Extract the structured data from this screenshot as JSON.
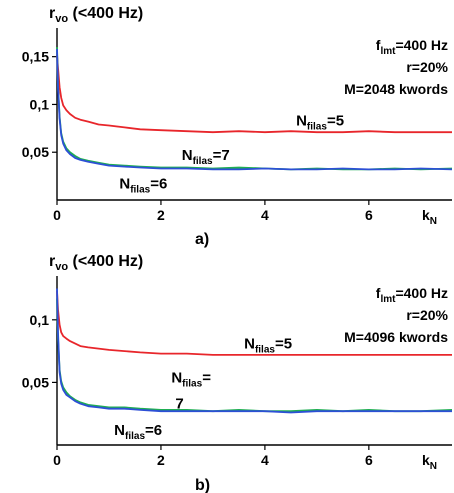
{
  "chart_data": [
    {
      "type": "line",
      "panel_label": "a)",
      "ylabel": {
        "base": "r",
        "sub": "vo",
        "rest": " (<400 Hz)"
      },
      "xlabel": {
        "base": "k",
        "sub": "N"
      },
      "xlim": [
        0,
        7.6
      ],
      "ylim": [
        0,
        0.18
      ],
      "xticks": [
        {
          "v": 0,
          "label": "0"
        },
        {
          "v": 2,
          "label": "2"
        },
        {
          "v": 4,
          "label": "4"
        },
        {
          "v": 6,
          "label": "6"
        }
      ],
      "yticks": [
        {
          "v": 0.05,
          "label": "0,05"
        },
        {
          "v": 0.1,
          "label": "0,1"
        },
        {
          "v": 0.15,
          "label": "0,15"
        }
      ],
      "params": [
        {
          "base": "f",
          "sub": "lmt",
          "rest": "=400 Hz"
        },
        {
          "base": "r=20%",
          "sub": "",
          "rest": ""
        },
        {
          "base": "M=2048 kwords",
          "sub": "",
          "rest": ""
        }
      ],
      "series": [
        {
          "label": {
            "base": "N",
            "sub": "filas",
            "rest": "=5"
          },
          "label_pos": [
            4.6,
            0.078
          ],
          "color": "#e8262b",
          "x": [
            0,
            0.02,
            0.05,
            0.08,
            0.12,
            0.18,
            0.25,
            0.35,
            0.45,
            0.6,
            0.8,
            1.0,
            1.3,
            1.6,
            2.0,
            2.5,
            3.0,
            3.5,
            4.0,
            4.5,
            5.0,
            5.5,
            6.0,
            6.5,
            7.0,
            7.6
          ],
          "y": [
            0.152,
            0.138,
            0.118,
            0.107,
            0.099,
            0.094,
            0.09,
            0.086,
            0.084,
            0.082,
            0.079,
            0.078,
            0.076,
            0.074,
            0.073,
            0.072,
            0.071,
            0.072,
            0.071,
            0.072,
            0.071,
            0.071,
            0.072,
            0.071,
            0.071,
            0.071
          ]
        },
        {
          "label": {
            "base": "N",
            "sub": "filas",
            "rest": "=7"
          },
          "label_pos": [
            2.4,
            0.042
          ],
          "color": "#1fae52",
          "x": [
            0,
            0.02,
            0.05,
            0.08,
            0.12,
            0.18,
            0.25,
            0.35,
            0.45,
            0.6,
            0.8,
            1.0,
            1.3,
            1.6,
            2.0,
            2.5,
            3.0,
            3.5,
            4.0,
            4.5,
            5.0,
            5.5,
            6.0,
            6.5,
            7.0,
            7.6
          ],
          "y": [
            0.16,
            0.12,
            0.087,
            0.07,
            0.061,
            0.054,
            0.05,
            0.046,
            0.043,
            0.041,
            0.039,
            0.037,
            0.036,
            0.035,
            0.034,
            0.034,
            0.033,
            0.034,
            0.033,
            0.032,
            0.033,
            0.032,
            0.032,
            0.033,
            0.032,
            0.033
          ]
        },
        {
          "label": {
            "base": "N",
            "sub": "filas",
            "rest": "=6"
          },
          "label_pos": [
            1.2,
            0.012
          ],
          "color": "#2d4fd6",
          "x": [
            0,
            0.02,
            0.05,
            0.08,
            0.12,
            0.18,
            0.25,
            0.35,
            0.45,
            0.6,
            0.8,
            1.0,
            1.3,
            1.6,
            2.0,
            2.5,
            3.0,
            3.5,
            4.0,
            4.5,
            5.0,
            5.5,
            6.0,
            6.5,
            7.0,
            7.6
          ],
          "y": [
            0.158,
            0.118,
            0.085,
            0.068,
            0.059,
            0.052,
            0.048,
            0.044,
            0.042,
            0.04,
            0.038,
            0.036,
            0.035,
            0.034,
            0.033,
            0.033,
            0.032,
            0.032,
            0.033,
            0.032,
            0.032,
            0.033,
            0.032,
            0.032,
            0.033,
            0.032
          ]
        }
      ]
    },
    {
      "type": "line",
      "panel_label": "b)",
      "ylabel": {
        "base": "r",
        "sub": "vo",
        "rest": " (<400 Hz)"
      },
      "xlabel": {
        "base": "k",
        "sub": "N"
      },
      "xlim": [
        0,
        7.6
      ],
      "ylim": [
        0,
        0.135
      ],
      "xticks": [
        {
          "v": 0,
          "label": "0"
        },
        {
          "v": 2,
          "label": "2"
        },
        {
          "v": 4,
          "label": "4"
        },
        {
          "v": 6,
          "label": "6"
        }
      ],
      "yticks": [
        {
          "v": 0.05,
          "label": "0,05"
        },
        {
          "v": 0.1,
          "label": "0,1"
        }
      ],
      "params": [
        {
          "base": "f",
          "sub": "lmt",
          "rest": "=400 Hz"
        },
        {
          "base": "r=20%",
          "sub": "",
          "rest": ""
        },
        {
          "base": "M=4096 kwords",
          "sub": "",
          "rest": ""
        }
      ],
      "series": [
        {
          "label": {
            "base": "N",
            "sub": "filas",
            "rest": "=5"
          },
          "label_pos": [
            3.6,
            0.077
          ],
          "color": "#e8262b",
          "x": [
            0,
            0.02,
            0.05,
            0.08,
            0.12,
            0.18,
            0.25,
            0.35,
            0.45,
            0.6,
            0.8,
            1.0,
            1.3,
            1.6,
            2.0,
            2.5,
            3.0,
            3.5,
            4.0,
            4.5,
            5.0,
            5.5,
            6.0,
            6.5,
            7.0,
            7.6
          ],
          "y": [
            0.123,
            0.108,
            0.096,
            0.09,
            0.087,
            0.085,
            0.083,
            0.081,
            0.079,
            0.078,
            0.077,
            0.076,
            0.075,
            0.074,
            0.073,
            0.073,
            0.072,
            0.072,
            0.072,
            0.072,
            0.072,
            0.072,
            0.072,
            0.072,
            0.072,
            0.072
          ]
        },
        {
          "label": {
            "base": "N",
            "sub": "filas",
            "rest": "="
          },
          "label_extra": "7",
          "label_pos": [
            2.2,
            0.05
          ],
          "color": "#1fae52",
          "x": [
            0,
            0.02,
            0.05,
            0.08,
            0.12,
            0.18,
            0.25,
            0.35,
            0.45,
            0.6,
            0.8,
            1.0,
            1.3,
            1.6,
            2.0,
            2.5,
            3.0,
            3.5,
            4.0,
            4.5,
            5.0,
            5.5,
            6.0,
            6.5,
            7.0,
            7.6
          ],
          "y": [
            0.117,
            0.085,
            0.06,
            0.051,
            0.046,
            0.042,
            0.039,
            0.036,
            0.034,
            0.032,
            0.031,
            0.03,
            0.03,
            0.029,
            0.028,
            0.028,
            0.027,
            0.028,
            0.027,
            0.027,
            0.028,
            0.027,
            0.028,
            0.027,
            0.027,
            0.028
          ]
        },
        {
          "label": {
            "base": "N",
            "sub": "filas",
            "rest": "=6"
          },
          "label_pos": [
            1.1,
            0.008
          ],
          "color": "#2d4fd6",
          "x": [
            0,
            0.02,
            0.05,
            0.08,
            0.12,
            0.18,
            0.25,
            0.35,
            0.45,
            0.6,
            0.8,
            1.0,
            1.3,
            1.6,
            2.0,
            2.5,
            3.0,
            3.5,
            4.0,
            4.5,
            5.0,
            5.5,
            6.0,
            6.5,
            7.0,
            7.6
          ],
          "y": [
            0.125,
            0.09,
            0.058,
            0.049,
            0.044,
            0.04,
            0.038,
            0.035,
            0.033,
            0.031,
            0.03,
            0.029,
            0.029,
            0.028,
            0.027,
            0.027,
            0.027,
            0.027,
            0.027,
            0.026,
            0.027,
            0.027,
            0.027,
            0.027,
            0.027,
            0.027
          ]
        }
      ]
    }
  ]
}
